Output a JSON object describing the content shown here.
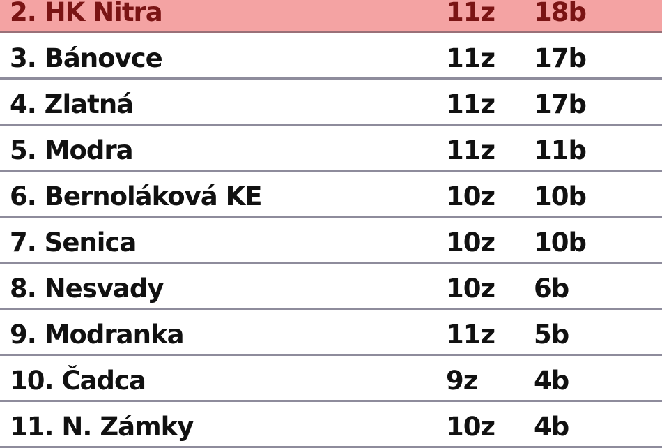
{
  "standings": [
    {
      "name": "2. HK Nitra",
      "games": "11z",
      "points": "18b",
      "highlighted": true
    },
    {
      "name": "3. Bánovce",
      "games": "11z",
      "points": "17b"
    },
    {
      "name": "4. Zlatná",
      "games": "11z",
      "points": "17b"
    },
    {
      "name": "5. Modra",
      "games": "11z",
      "points": "11b"
    },
    {
      "name": "6. Bernoláková KE",
      "games": "10z",
      "points": "10b"
    },
    {
      "name": "7. Senica",
      "games": "10z",
      "points": "10b"
    },
    {
      "name": "8. Nesvady",
      "games": "10z",
      "points": "6b"
    },
    {
      "name": "9. Modranka",
      "games": "11z",
      "points": "5b"
    },
    {
      "name": "10. Čadca",
      "games": "9z",
      "points": "4b"
    },
    {
      "name": "11. N. Zámky",
      "games": "10z",
      "points": "4b"
    }
  ],
  "colors": {
    "highlight": "#f4a3a3",
    "highlight_text": "#7a1414",
    "divider": "#8e8c9c"
  }
}
